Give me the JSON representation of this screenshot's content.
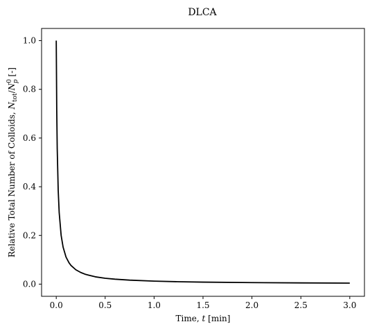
{
  "chart_data": {
    "type": "line",
    "title": "DLCA",
    "xlabel": {
      "prefix": "Time, ",
      "var": "t",
      "suffix": " [min]"
    },
    "ylabel": {
      "prefix": "Relative Total Number of Colloids, ",
      "var_n": "N",
      "sub_tot": "tot",
      "slash": "/",
      "var_n2": "N",
      "sup_0": "0",
      "sub_p": "p",
      "suffix": " [-]"
    },
    "xlim": [
      -0.15,
      3.15
    ],
    "ylim": [
      -0.05,
      1.05
    ],
    "xticks": [
      0.0,
      0.5,
      1.0,
      1.5,
      2.0,
      2.5,
      3.0
    ],
    "xtick_labels": [
      "0.0",
      "0.5",
      "1.0",
      "1.5",
      "2.0",
      "2.5",
      "3.0"
    ],
    "yticks": [
      0.0,
      0.2,
      0.4,
      0.6,
      0.8,
      1.0
    ],
    "ytick_labels": [
      "0.0",
      "0.2",
      "0.4",
      "0.6",
      "0.8",
      "1.0"
    ],
    "grid": false,
    "legend": "none",
    "line_color": "#000000",
    "series": [
      {
        "x": [
          0.0,
          0.005,
          0.01,
          0.02,
          0.03,
          0.05,
          0.07,
          0.1,
          0.13,
          0.15,
          0.2,
          0.25,
          0.3,
          0.4,
          0.5,
          0.6,
          0.75,
          1.0,
          1.25,
          1.5,
          2.0,
          2.5,
          3.0
        ],
        "y": [
          1.0,
          0.714,
          0.556,
          0.385,
          0.294,
          0.2,
          0.152,
          0.111,
          0.088,
          0.077,
          0.059,
          0.048,
          0.04,
          0.03,
          0.024,
          0.0203,
          0.0164,
          0.0123,
          0.0099,
          0.0083,
          0.0062,
          0.005,
          0.0042
        ]
      }
    ]
  }
}
